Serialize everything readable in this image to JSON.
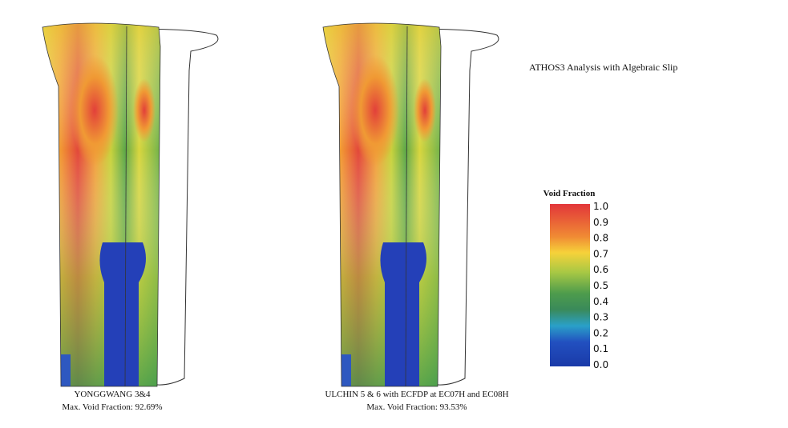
{
  "title": "ATHOS3 Analysis with Algebraic Slip",
  "panels": [
    {
      "caption": "YONGGWANG 3&4",
      "max_void": "Max. Void Fraction: 92.69%"
    },
    {
      "caption": "ULCHIN 5 & 6 with ECFDP at EC07H and EC08H",
      "max_void": "Max. Void Fraction: 93.53%"
    }
  ],
  "colorbar": {
    "label": "Void Fraction",
    "ticks": [
      "1.0",
      "0.9",
      "0.8",
      "0.7",
      "0.6",
      "0.5",
      "0.4",
      "0.3",
      "0.2",
      "0.1",
      "0.0"
    ]
  }
}
